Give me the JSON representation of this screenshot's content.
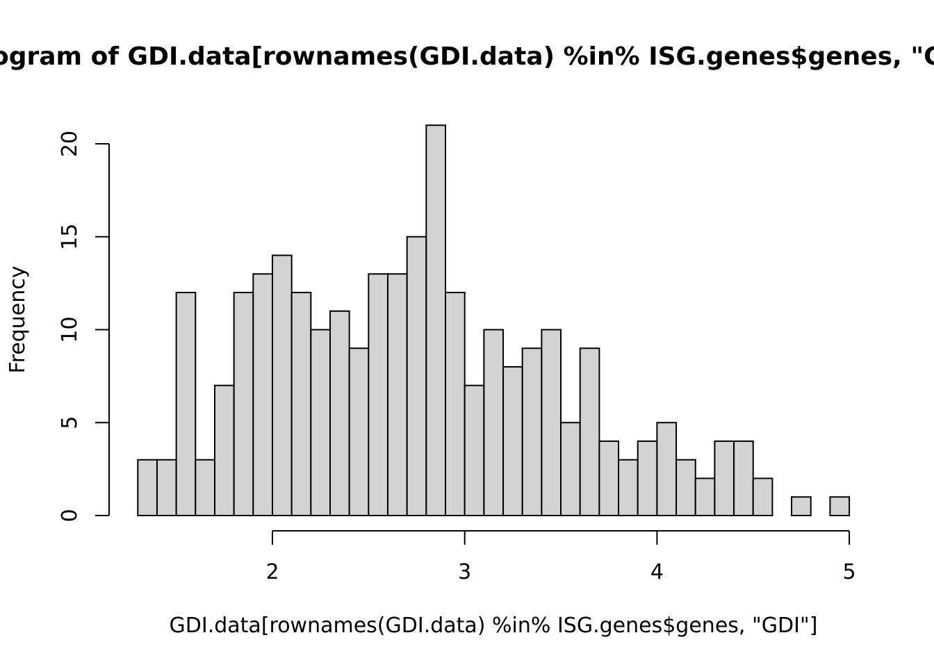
{
  "chart_data": {
    "type": "bar",
    "title": "Histogram of GDI.data[rownames(GDI.data) %in% ISG.genes$genes, \"GDI\"]",
    "xlabel": "GDI.data[rownames(GDI.data) %in% ISG.genes$genes, \"GDI\"]",
    "ylabel": "Frequency",
    "bin_width": 0.1,
    "bin_start": 1.3,
    "counts": [
      3,
      3,
      12,
      3,
      7,
      12,
      13,
      14,
      12,
      10,
      11,
      9,
      13,
      13,
      15,
      21,
      12,
      7,
      10,
      8,
      9,
      10,
      5,
      9,
      4,
      3,
      4,
      5,
      3,
      2,
      4,
      4,
      2,
      0,
      1,
      0,
      1
    ],
    "xticks": [
      2,
      3,
      4,
      5
    ],
    "yticks": [
      0,
      5,
      10,
      15,
      20
    ],
    "xlim": [
      1.3,
      5.0
    ],
    "ylim": [
      0,
      21
    ],
    "bar_color": "#d3d3d3",
    "grid": false,
    "legend": "none"
  }
}
